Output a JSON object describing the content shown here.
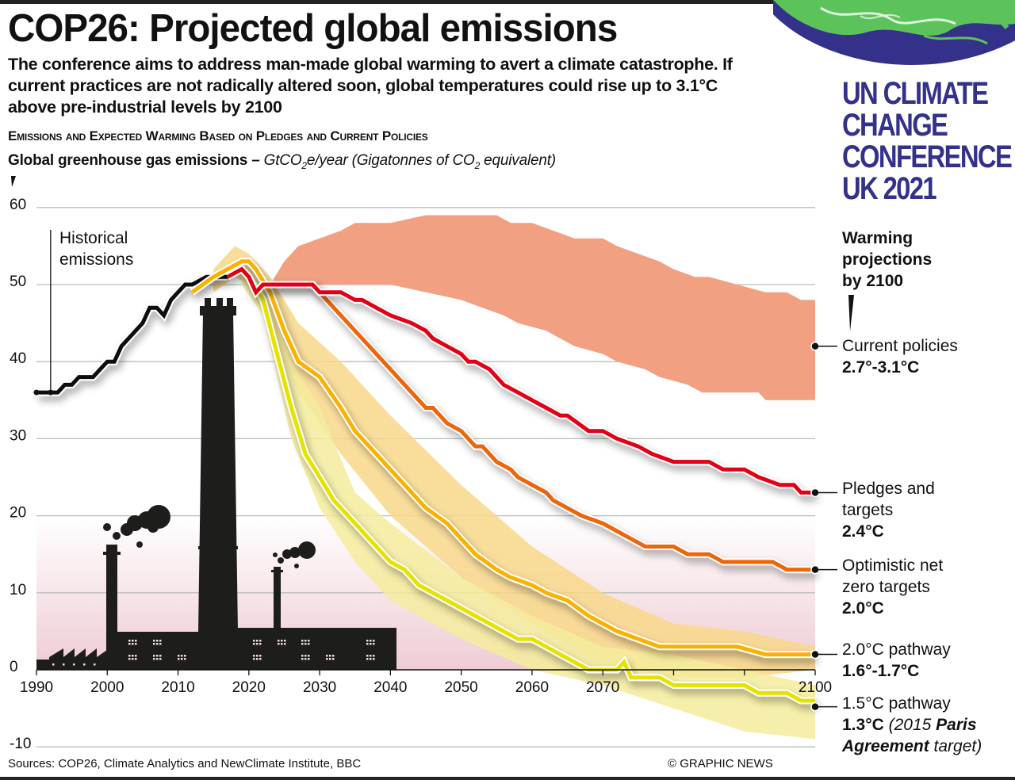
{
  "header": {
    "title": "COP26: Projected global emissions",
    "intro": "The conference aims to address man-made global warming to avert a climate catastrophe. If current practices are not radically altered soon, global temperatures could rise up to 3.1°C above pre-industrial levels by 2100",
    "subhead": "Emissions and Expected Warming Based on Pledges and Current Policies",
    "unit_bold": "Global greenhouse gas emissions – ",
    "unit_italic_1": "GtCO",
    "unit_sub_1": "2",
    "unit_italic_2": "e/year (Gigatonnes of CO",
    "unit_sub_2": "2",
    "unit_italic_3": " equivalent)"
  },
  "logo": {
    "lines": [
      "UN CLIMATE",
      "CHANGE",
      "CONFERENCE",
      "UK 2021"
    ],
    "brand_color": "#33318a",
    "globe_green": "#5cc35b"
  },
  "legend": {
    "heading": [
      "Warming",
      "projections",
      "by 2100"
    ],
    "items": [
      {
        "name": "Current policies",
        "temp": "2.7°-3.1°C"
      },
      {
        "name": "Pledges and targets",
        "name_lines": [
          "Pledges and",
          "targets"
        ],
        "temp": "2.4°C"
      },
      {
        "name": "Optimistic net zero targets",
        "name_lines": [
          "Optimistic net",
          "zero targets"
        ],
        "temp": "2.0°C"
      },
      {
        "name": "2.0°C pathway",
        "temp": "1.6°-1.7°C"
      },
      {
        "name": "1.5°C pathway",
        "temp": "1.3°C",
        "note_pre": " (2015 ",
        "note_bold1": "Paris",
        "note_bold2": "Agreement",
        "note_post": " target)"
      }
    ]
  },
  "annotations": {
    "historical": [
      "Historical",
      "emissions"
    ]
  },
  "footer": {
    "sources": "Sources: COP26, Climate Analytics and NewClimate Institute, BBC",
    "copyright": "© GRAPHIC NEWS"
  },
  "chart_data": {
    "type": "line",
    "title": "Global greenhouse gas emissions",
    "ylabel": "GtCO2e/year",
    "xlabel": "",
    "xlim": [
      1990,
      2100
    ],
    "ylim": [
      -10,
      60
    ],
    "x_ticks": [
      1990,
      2000,
      2010,
      2020,
      2030,
      2040,
      2050,
      2060,
      2070,
      2100
    ],
    "y_ticks": [
      60,
      50,
      40,
      30,
      20,
      10,
      0,
      -10
    ],
    "grid": true,
    "legend_position": "right",
    "series": [
      {
        "name": "Historical emissions",
        "color": "#111111",
        "points": [
          [
            1990,
            36
          ],
          [
            1992,
            36
          ],
          [
            1993,
            36
          ],
          [
            1994,
            37
          ],
          [
            1995,
            37
          ],
          [
            1996,
            38
          ],
          [
            1998,
            38
          ],
          [
            2000,
            40
          ],
          [
            2001,
            40
          ],
          [
            2002,
            42
          ],
          [
            2004,
            44
          ],
          [
            2005,
            45
          ],
          [
            2006,
            47
          ],
          [
            2007,
            47
          ],
          [
            2008,
            46
          ],
          [
            2009,
            48
          ],
          [
            2010,
            49
          ],
          [
            2011,
            50
          ],
          [
            2012,
            50
          ],
          [
            2014,
            51
          ],
          [
            2017,
            51
          ]
        ]
      },
      {
        "name": "Current policies",
        "color": "#f2a082",
        "type": "band",
        "upper": [
          [
            2023,
            50
          ],
          [
            2025,
            53
          ],
          [
            2027,
            55
          ],
          [
            2030,
            56
          ],
          [
            2033,
            57
          ],
          [
            2035,
            58
          ],
          [
            2040,
            58
          ],
          [
            2045,
            59
          ],
          [
            2055,
            59
          ],
          [
            2057,
            58
          ],
          [
            2060,
            58
          ],
          [
            2063,
            57
          ],
          [
            2066,
            56
          ],
          [
            2070,
            56
          ],
          [
            2072,
            55
          ],
          [
            2075,
            54
          ],
          [
            2078,
            53
          ],
          [
            2080,
            52
          ],
          [
            2083,
            51
          ],
          [
            2085,
            51
          ],
          [
            2089,
            50
          ],
          [
            2093,
            49
          ],
          [
            2096,
            49
          ],
          [
            2098,
            48
          ],
          [
            2100,
            48
          ]
        ],
        "lower": [
          [
            2023,
            50
          ],
          [
            2030,
            50
          ],
          [
            2034,
            50
          ],
          [
            2040,
            50
          ],
          [
            2045,
            49
          ],
          [
            2050,
            48
          ],
          [
            2053,
            47
          ],
          [
            2056,
            46
          ],
          [
            2058,
            45
          ],
          [
            2062,
            44
          ],
          [
            2064,
            43
          ],
          [
            2066,
            42
          ],
          [
            2070,
            41
          ],
          [
            2072,
            40
          ],
          [
            2076,
            39
          ],
          [
            2078,
            38
          ],
          [
            2082,
            37
          ],
          [
            2084,
            36
          ],
          [
            2092,
            36
          ],
          [
            2093,
            35
          ],
          [
            2100,
            35
          ]
        ]
      },
      {
        "name": "Pledges and targets",
        "color": "#e30613",
        "points": [
          [
            2017,
            51
          ],
          [
            2019,
            52
          ],
          [
            2020,
            51
          ],
          [
            2021,
            49
          ],
          [
            2022,
            50
          ],
          [
            2029,
            50
          ],
          [
            2030,
            49
          ],
          [
            2033,
            49
          ],
          [
            2035,
            48
          ],
          [
            2036,
            48
          ],
          [
            2038,
            47
          ],
          [
            2040,
            46
          ],
          [
            2043,
            45
          ],
          [
            2045,
            44
          ],
          [
            2046,
            43
          ],
          [
            2048,
            42
          ],
          [
            2050,
            41
          ],
          [
            2051,
            40
          ],
          [
            2052,
            40
          ],
          [
            2054,
            39
          ],
          [
            2056,
            37
          ],
          [
            2058,
            36
          ],
          [
            2060,
            35
          ],
          [
            2062,
            34
          ],
          [
            2064,
            33
          ],
          [
            2065,
            33
          ],
          [
            2068,
            31
          ],
          [
            2070,
            31
          ],
          [
            2072,
            30
          ],
          [
            2075,
            29
          ],
          [
            2077,
            28
          ],
          [
            2080,
            27
          ],
          [
            2085,
            27
          ],
          [
            2087,
            26
          ],
          [
            2090,
            26
          ],
          [
            2092,
            25
          ],
          [
            2095,
            24
          ],
          [
            2097,
            24
          ],
          [
            2098,
            23
          ],
          [
            2100,
            23
          ]
        ]
      },
      {
        "name": "Optimistic net zero targets",
        "color": "#ec6608",
        "points": [
          [
            2022,
            50
          ],
          [
            2029,
            50
          ],
          [
            2032,
            47
          ],
          [
            2035,
            44
          ],
          [
            2040,
            39
          ],
          [
            2043,
            36
          ],
          [
            2045,
            34
          ],
          [
            2046,
            34
          ],
          [
            2048,
            32
          ],
          [
            2050,
            31
          ],
          [
            2052,
            29
          ],
          [
            2053,
            29
          ],
          [
            2055,
            27
          ],
          [
            2057,
            26
          ],
          [
            2058,
            25
          ],
          [
            2060,
            24
          ],
          [
            2062,
            23
          ],
          [
            2063,
            22
          ],
          [
            2065,
            21
          ],
          [
            2067,
            20
          ],
          [
            2070,
            19
          ],
          [
            2072,
            18
          ],
          [
            2074,
            17
          ],
          [
            2076,
            16
          ],
          [
            2080,
            16
          ],
          [
            2082,
            15
          ],
          [
            2085,
            15
          ],
          [
            2087,
            14
          ],
          [
            2094,
            14
          ],
          [
            2096,
            13
          ],
          [
            2100,
            13
          ]
        ]
      },
      {
        "name": "2.0°C pathway",
        "color": "#f9b200",
        "band_color": "#f8d88a",
        "points": [
          [
            2012,
            49
          ],
          [
            2015,
            51
          ],
          [
            2017,
            52
          ],
          [
            2019,
            53
          ],
          [
            2020,
            53
          ],
          [
            2021,
            52
          ],
          [
            2023,
            49
          ],
          [
            2025,
            44
          ],
          [
            2027,
            40
          ],
          [
            2030,
            38
          ],
          [
            2033,
            34
          ],
          [
            2035,
            31
          ],
          [
            2038,
            28
          ],
          [
            2040,
            26
          ],
          [
            2042,
            24
          ],
          [
            2045,
            21
          ],
          [
            2048,
            19
          ],
          [
            2050,
            17
          ],
          [
            2052,
            15
          ],
          [
            2055,
            13
          ],
          [
            2057,
            12
          ],
          [
            2060,
            11
          ],
          [
            2062,
            10
          ],
          [
            2065,
            9
          ],
          [
            2068,
            7
          ],
          [
            2070,
            6
          ],
          [
            2072,
            5
          ],
          [
            2075,
            4
          ],
          [
            2078,
            3
          ],
          [
            2081,
            3
          ],
          [
            2089,
            3
          ],
          [
            2093,
            2
          ],
          [
            2100,
            2
          ]
        ],
        "band_upper": [
          [
            2015,
            52
          ],
          [
            2018,
            55
          ],
          [
            2020,
            54
          ],
          [
            2023,
            51
          ],
          [
            2027,
            45
          ],
          [
            2033,
            40
          ],
          [
            2040,
            33
          ],
          [
            2050,
            24
          ],
          [
            2060,
            16
          ],
          [
            2070,
            10
          ],
          [
            2080,
            6
          ],
          [
            2090,
            5
          ],
          [
            2100,
            3
          ]
        ],
        "band_lower": [
          [
            2015,
            49
          ],
          [
            2018,
            51
          ],
          [
            2020,
            50
          ],
          [
            2023,
            44
          ],
          [
            2027,
            36
          ],
          [
            2033,
            28
          ],
          [
            2040,
            20
          ],
          [
            2050,
            12
          ],
          [
            2060,
            6
          ],
          [
            2070,
            1
          ],
          [
            2080,
            -1
          ],
          [
            2090,
            -1
          ],
          [
            2100,
            0
          ]
        ]
      },
      {
        "name": "1.5°C pathway",
        "color": "#e6e200",
        "band_color": "#f4ec9c",
        "points": [
          [
            2019,
            52
          ],
          [
            2020,
            51
          ],
          [
            2022,
            48
          ],
          [
            2024,
            41
          ],
          [
            2026,
            34
          ],
          [
            2028,
            28
          ],
          [
            2030,
            25
          ],
          [
            2032,
            22
          ],
          [
            2034,
            20
          ],
          [
            2036,
            18
          ],
          [
            2038,
            16
          ],
          [
            2040,
            14
          ],
          [
            2042,
            13
          ],
          [
            2044,
            11
          ],
          [
            2046,
            10
          ],
          [
            2048,
            9
          ],
          [
            2050,
            8
          ],
          [
            2052,
            7
          ],
          [
            2054,
            6
          ],
          [
            2056,
            5
          ],
          [
            2058,
            4
          ],
          [
            2060,
            4
          ],
          [
            2062,
            3
          ],
          [
            2064,
            2
          ],
          [
            2066,
            1
          ],
          [
            2068,
            0
          ],
          [
            2072,
            0
          ],
          [
            2073,
            1
          ],
          [
            2074,
            -1
          ],
          [
            2078,
            -1
          ],
          [
            2080,
            -2
          ],
          [
            2090,
            -2
          ],
          [
            2092,
            -3
          ],
          [
            2096,
            -3
          ],
          [
            2098,
            -4
          ],
          [
            2100,
            -4
          ]
        ],
        "band_upper": [
          [
            2019,
            53
          ],
          [
            2022,
            50
          ],
          [
            2026,
            40
          ],
          [
            2030,
            34
          ],
          [
            2035,
            23
          ],
          [
            2040,
            19
          ],
          [
            2050,
            12
          ],
          [
            2060,
            7
          ],
          [
            2070,
            3
          ],
          [
            2080,
            2
          ],
          [
            2090,
            0
          ],
          [
            2100,
            -2
          ]
        ],
        "band_lower": [
          [
            2019,
            50
          ],
          [
            2022,
            46
          ],
          [
            2026,
            30
          ],
          [
            2030,
            21
          ],
          [
            2035,
            14
          ],
          [
            2040,
            9
          ],
          [
            2050,
            4
          ],
          [
            2060,
            0
          ],
          [
            2070,
            -2
          ],
          [
            2080,
            -5
          ],
          [
            2090,
            -8
          ],
          [
            2100,
            -9
          ]
        ]
      }
    ]
  }
}
